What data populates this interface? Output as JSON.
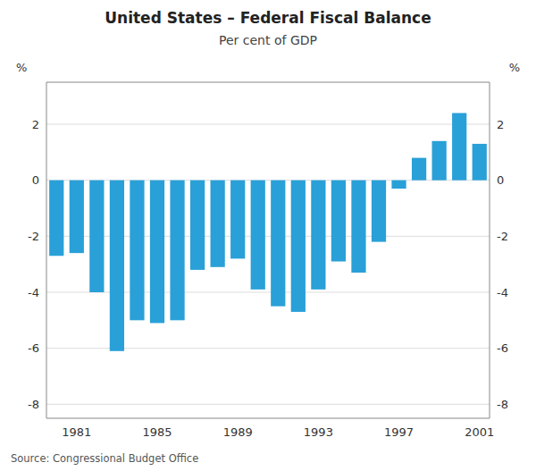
{
  "chart_data": {
    "type": "bar",
    "title": "United States – Federal Fiscal Balance",
    "subtitle": "Per cent of GDP",
    "source": "Source: Congressional Budget Office",
    "ylabel": "%",
    "y2label": "%",
    "categories": [
      null,
      "1981",
      null,
      null,
      null,
      "1985",
      null,
      null,
      null,
      "1989",
      null,
      null,
      null,
      "1993",
      null,
      null,
      null,
      "1997",
      null,
      null,
      null,
      "2001"
    ],
    "values": [
      -2.7,
      -2.6,
      -4.0,
      -6.1,
      -5.0,
      -5.1,
      -5.0,
      -3.2,
      -3.1,
      -2.8,
      -3.9,
      -4.5,
      -4.7,
      -3.9,
      -2.9,
      -3.3,
      -2.2,
      -0.3,
      0.8,
      1.4,
      2.4,
      1.3
    ],
    "color": "#29a0d8",
    "ylim": [
      -8.5,
      3.5
    ],
    "yticks": [
      -8,
      -6,
      -4,
      -2,
      0,
      2
    ],
    "y2lim": [
      -8.5,
      3.5
    ],
    "y2ticks": [
      -8,
      -6,
      -4,
      -2,
      0,
      2
    ],
    "grid": true
  }
}
